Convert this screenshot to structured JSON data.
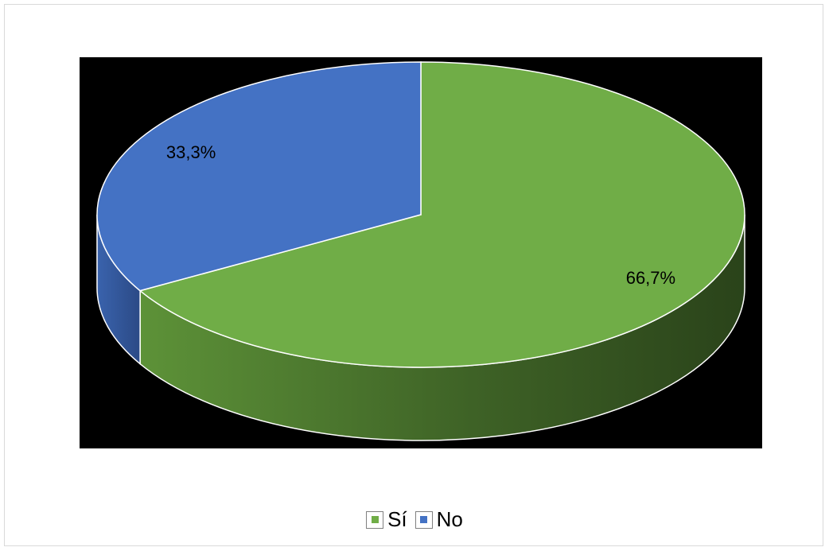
{
  "chart_data": {
    "type": "pie",
    "style": "3d",
    "categories": [
      "Sí",
      "No"
    ],
    "values": [
      66.7,
      33.3
    ],
    "labels": [
      "66,7%",
      "33,3%"
    ],
    "colors": [
      "#70AD47",
      "#4472C4"
    ],
    "plot_background": "#000000",
    "legend": "bottom"
  },
  "legend": {
    "items": [
      {
        "label": "Sí",
        "color": "#70AD47"
      },
      {
        "label": "No",
        "color": "#4472C4"
      }
    ]
  }
}
